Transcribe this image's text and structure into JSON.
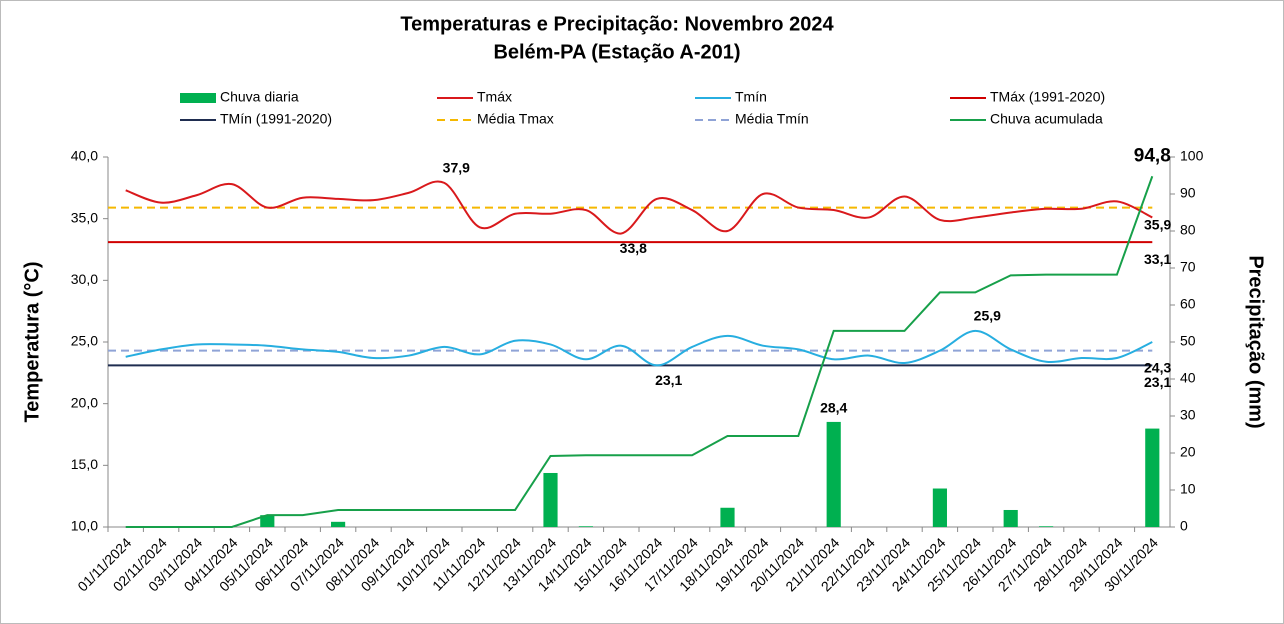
{
  "chart_data": {
    "type": "combo",
    "title": "Temperaturas e Precipitação: Novembro 2024",
    "subtitle": "Belém-PA (Estação A-201)",
    "y_label": "Temperatura (°C)",
    "y2_label": "Precipitação (mm)",
    "categories": [
      "01/11/2024",
      "02/11/2024",
      "03/11/2024",
      "04/11/2024",
      "05/11/2024",
      "06/11/2024",
      "07/11/2024",
      "08/11/2024",
      "09/11/2024",
      "10/11/2024",
      "11/11/2024",
      "12/11/2024",
      "13/11/2024",
      "14/11/2024",
      "15/11/2024",
      "16/11/2024",
      "17/11/2024",
      "18/11/2024",
      "19/11/2024",
      "20/11/2024",
      "21/11/2024",
      "22/11/2024",
      "23/11/2024",
      "24/11/2024",
      "25/11/2024",
      "26/11/2024",
      "27/11/2024",
      "28/11/2024",
      "29/11/2024",
      "30/11/2024"
    ],
    "ylim": [
      10,
      40
    ],
    "yticks": [
      {
        "value": 10,
        "label": "10,0"
      },
      {
        "value": 15,
        "label": "15,0"
      },
      {
        "value": 20,
        "label": "20,0"
      },
      {
        "value": 25,
        "label": "25,0"
      },
      {
        "value": 30,
        "label": "30,0"
      },
      {
        "value": 35,
        "label": "35,0"
      },
      {
        "value": 40,
        "label": "40,0"
      }
    ],
    "y2lim": [
      0,
      100
    ],
    "y2ticks": [
      0,
      10,
      20,
      30,
      40,
      50,
      60,
      70,
      80,
      90,
      100
    ],
    "series": [
      {
        "name": "Chuva diaria",
        "kind": "bar",
        "axis": "y2",
        "color": "#00b050",
        "values": [
          0,
          0,
          0,
          0,
          3.2,
          0,
          1.4,
          0,
          0,
          0,
          0,
          0,
          14.6,
          0.2,
          0,
          0,
          0,
          5.2,
          0,
          0,
          28.4,
          0,
          0,
          10.4,
          0,
          4.6,
          0.2,
          0,
          0,
          26.6
        ],
        "value_labels": [
          null,
          null,
          null,
          null,
          null,
          null,
          null,
          null,
          null,
          null,
          null,
          null,
          null,
          null,
          null,
          null,
          null,
          null,
          null,
          null,
          "28,4",
          null,
          null,
          null,
          null,
          null,
          null,
          null,
          null,
          null
        ]
      },
      {
        "name": "Tmáx",
        "kind": "line",
        "color": "#d9191c",
        "values": [
          37.3,
          36.3,
          36.9,
          37.8,
          35.9,
          36.7,
          36.6,
          36.5,
          37.1,
          37.9,
          34.3,
          35.4,
          35.4,
          35.7,
          33.8,
          36.6,
          35.7,
          34.0,
          37.0,
          35.9,
          35.7,
          35.1,
          36.8,
          34.9,
          35.1,
          35.5,
          35.8,
          35.8,
          36.4,
          35.1
        ],
        "value_labels": [
          null,
          null,
          null,
          null,
          null,
          null,
          null,
          null,
          null,
          "37,9",
          null,
          null,
          null,
          null,
          "33,8",
          null,
          null,
          null,
          null,
          null,
          null,
          null,
          null,
          null,
          null,
          null,
          null,
          null,
          null,
          null
        ]
      },
      {
        "name": "Tmín",
        "kind": "line",
        "color": "#27aee0",
        "values": [
          23.8,
          24.4,
          24.8,
          24.8,
          24.7,
          24.4,
          24.2,
          23.7,
          23.9,
          24.6,
          24.0,
          25.1,
          24.8,
          23.6,
          24.7,
          23.1,
          24.6,
          25.5,
          24.7,
          24.4,
          23.6,
          23.9,
          23.3,
          24.3,
          25.9,
          24.4,
          23.4,
          23.7,
          23.7,
          25.0
        ],
        "value_labels": [
          null,
          null,
          null,
          null,
          null,
          null,
          null,
          null,
          null,
          null,
          null,
          null,
          null,
          null,
          null,
          "23,1",
          null,
          null,
          null,
          null,
          null,
          null,
          null,
          null,
          "25,9",
          null,
          null,
          null,
          null,
          null
        ]
      },
      {
        "name": "TMáx (1991-2020)",
        "kind": "hline",
        "color": "#d00000",
        "value": 33.1,
        "value_label": "33,1",
        "label_color": "#c00000"
      },
      {
        "name": "TMín (1991-2020)",
        "kind": "hline",
        "color": "#1f2d50",
        "value": 23.1,
        "value_label": "23,1",
        "label_color": "#1f3864"
      },
      {
        "name": "Média Tmax",
        "kind": "hline",
        "dashed": true,
        "color": "#f5b800",
        "value": 35.9,
        "value_label": "35,9",
        "label_color": "#f0a050"
      },
      {
        "name": "Média Tmín",
        "kind": "hline",
        "dashed": true,
        "color": "#8fa3d6",
        "value": 24.3,
        "value_label": "24,3",
        "label_color": "#1f77b4"
      },
      {
        "name": "Chuva acumulada",
        "kind": "line",
        "axis": "y2",
        "smooth": false,
        "color": "#17a04a",
        "values": [
          0,
          0,
          0,
          0,
          3.2,
          3.2,
          4.6,
          4.6,
          4.6,
          4.6,
          4.6,
          4.6,
          19.2,
          19.4,
          19.4,
          19.4,
          19.4,
          24.6,
          24.6,
          24.6,
          53.0,
          53.0,
          53.0,
          63.4,
          63.4,
          68.0,
          68.2,
          68.2,
          68.2,
          94.8
        ],
        "value_labels": [
          null,
          null,
          null,
          null,
          null,
          null,
          null,
          null,
          null,
          null,
          null,
          null,
          null,
          null,
          null,
          null,
          null,
          null,
          null,
          null,
          null,
          null,
          null,
          null,
          null,
          null,
          null,
          null,
          null,
          "94,8"
        ]
      }
    ]
  }
}
